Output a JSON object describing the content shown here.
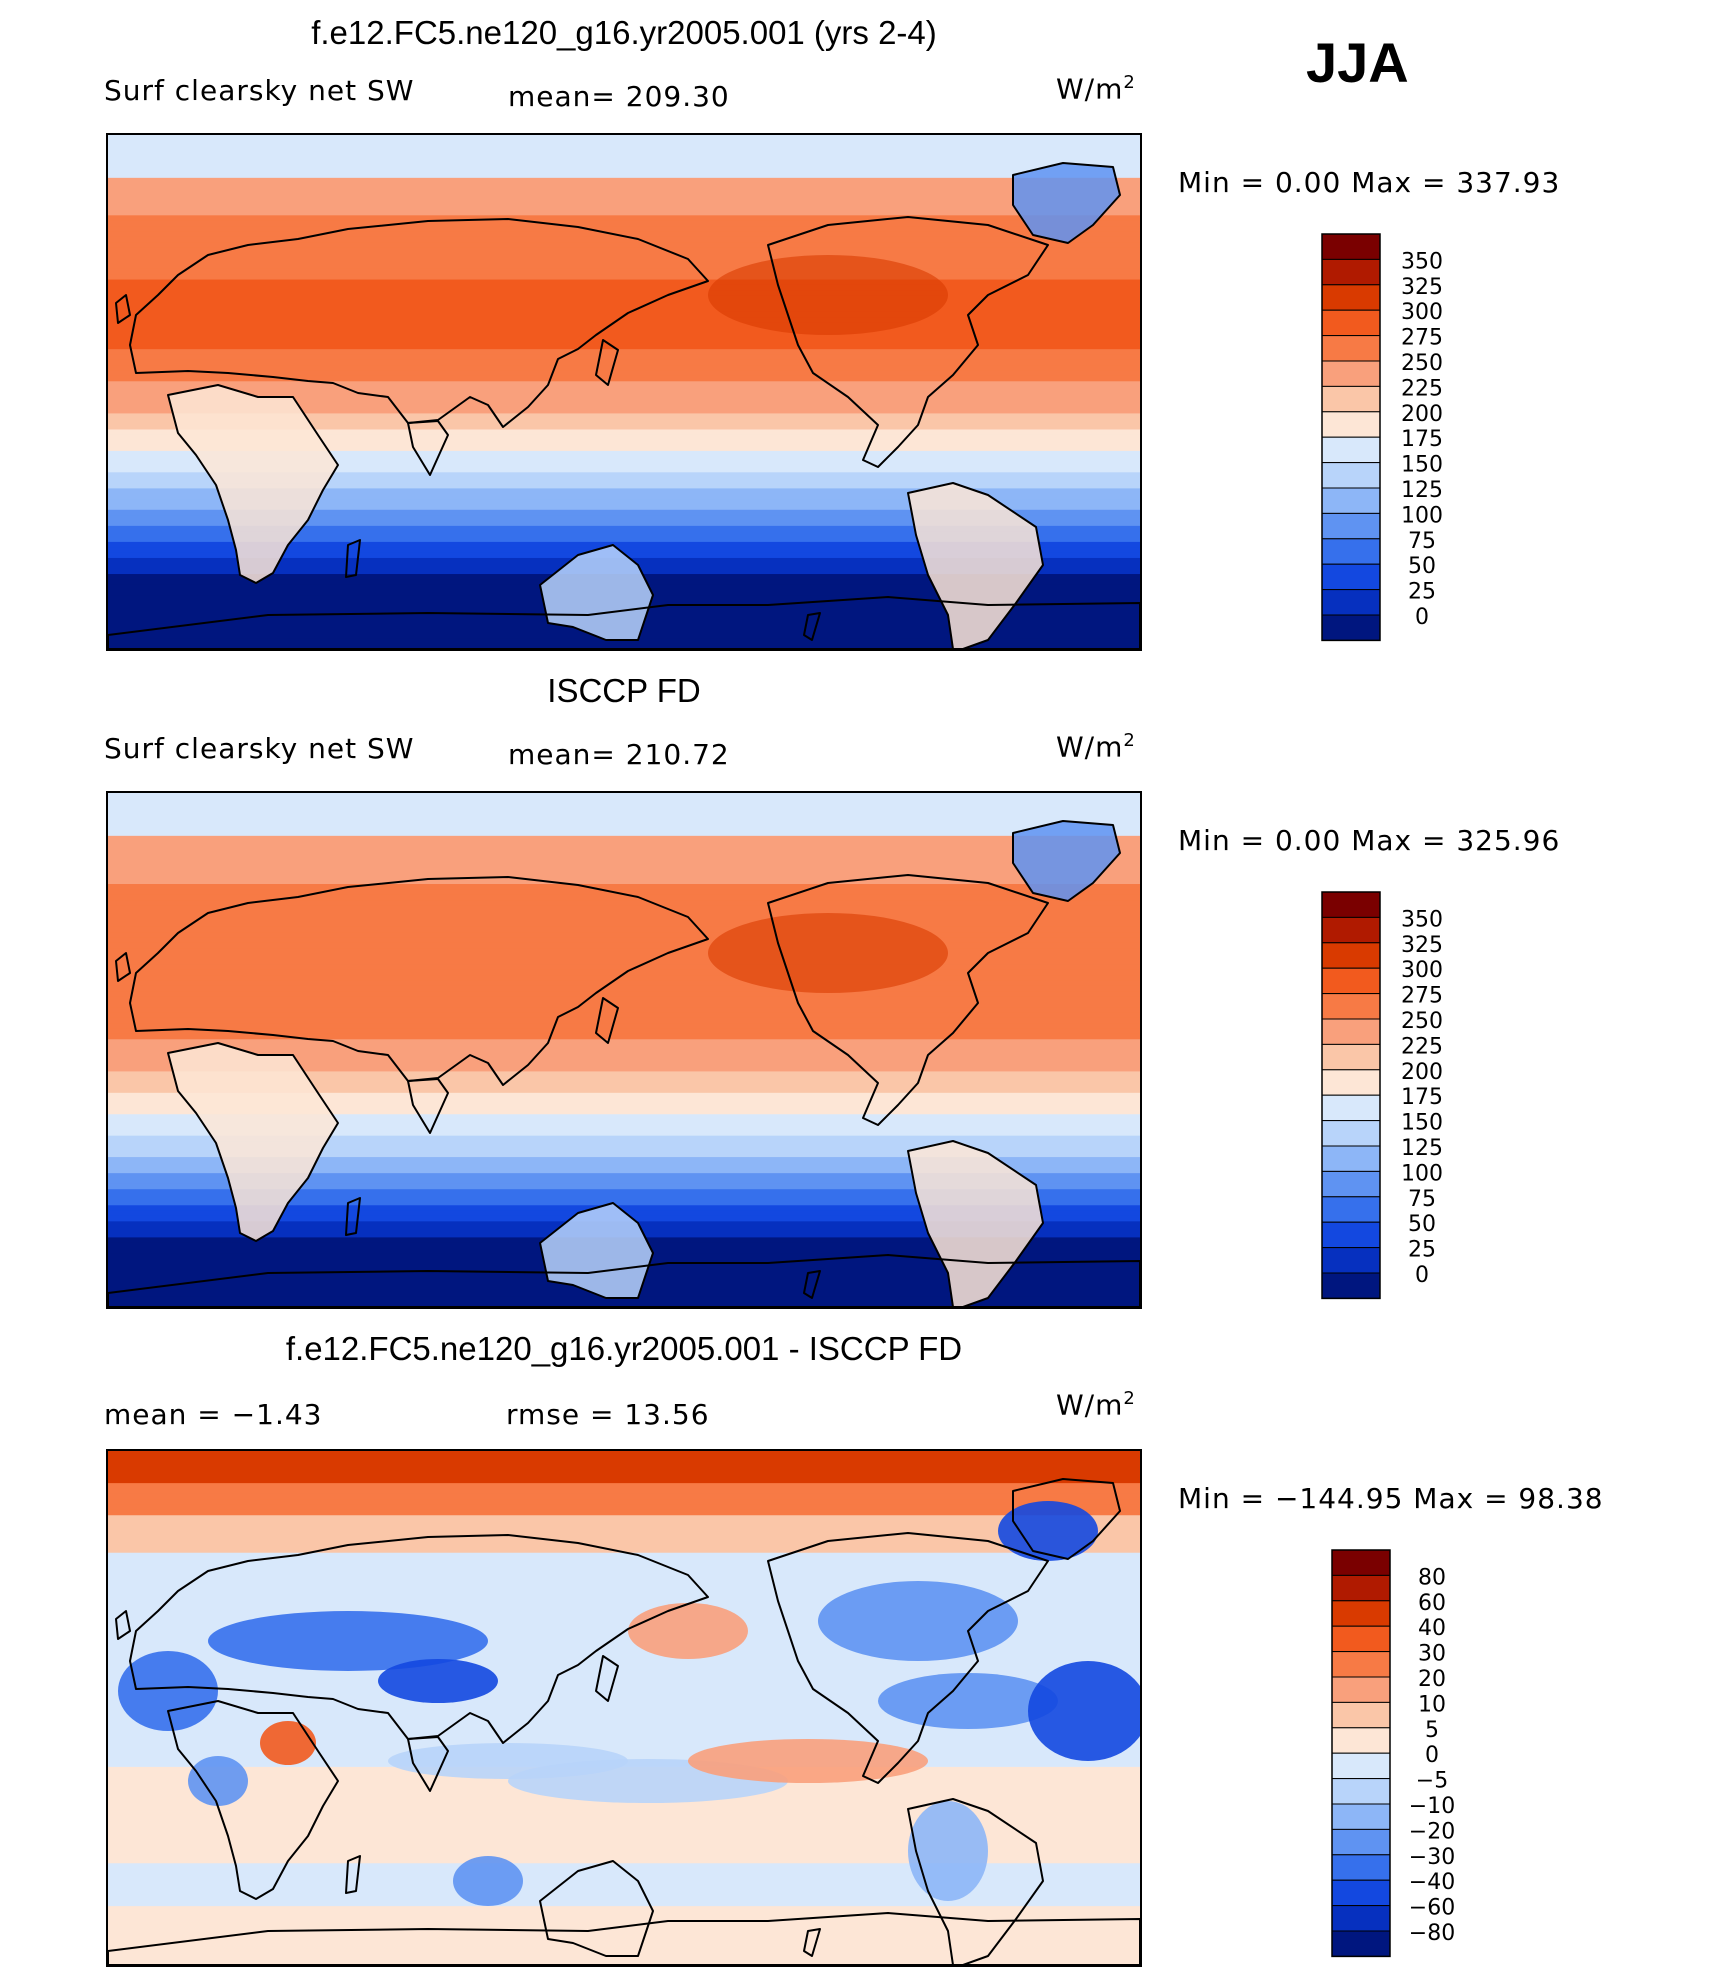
{
  "season": "JJA",
  "panels": [
    {
      "title": "f.e12.FC5.ne120_g16.yr2005.001 (yrs 2-4)",
      "left_label": "Surf clearsky net SW",
      "mid_label": "mean=  209.30",
      "units": "W/m",
      "units_sup": "2",
      "minmax": "Min =    0.00 Max =  337.93",
      "colorbar_labels": [
        "350",
        "325",
        "300",
        "275",
        "250",
        "225",
        "200",
        "175",
        "150",
        "125",
        "100",
        "75",
        "50",
        "25",
        "0"
      ]
    },
    {
      "title": "ISCCP FD",
      "left_label": "Surf clearsky net SW",
      "mid_label": "mean=  210.72",
      "units": "W/m",
      "units_sup": "2",
      "minmax": "Min =    0.00 Max =  325.96",
      "colorbar_labels": [
        "350",
        "325",
        "300",
        "275",
        "250",
        "225",
        "200",
        "175",
        "150",
        "125",
        "100",
        "75",
        "50",
        "25",
        "0"
      ]
    },
    {
      "title": "f.e12.FC5.ne120_g16.yr2005.001 - ISCCP FD",
      "left_label": "mean =   −1.43",
      "mid_label": "rmse =   13.56",
      "units": "W/m",
      "units_sup": "2",
      "minmax": "Min = −144.95 Max =   98.38",
      "colorbar_labels": [
        "80",
        "60",
        "40",
        "30",
        "20",
        "10",
        "5",
        "0",
        "−5",
        "−10",
        "−20",
        "−30",
        "−40",
        "−60",
        "−80"
      ]
    }
  ],
  "colors": {
    "abs_scale": [
      "#7a0000",
      "#b01a00",
      "#d93a00",
      "#f25a1e",
      "#f77a45",
      "#f9a07c",
      "#fac6a8",
      "#fde6d6",
      "#d8e8fb",
      "#b8d4fa",
      "#8db6f7",
      "#5f93f2",
      "#3670ec",
      "#1348e0",
      "#0630bf",
      "#00167f"
    ],
    "diff_scale": [
      "#7a0000",
      "#b01a00",
      "#d93a00",
      "#f25a1e",
      "#f77a45",
      "#f9a07c",
      "#fac6a8",
      "#fde6d6",
      "#d8e8fb",
      "#b8d4fa",
      "#8db6f7",
      "#5f93f2",
      "#3670ec",
      "#1348e0",
      "#0630bf",
      "#00167f"
    ],
    "coast": "#000000"
  },
  "chart_data": [
    {
      "type": "heatmap",
      "title": "f.e12.FC5.ne120_g16.yr2005.001 (yrs 2-4)",
      "variable": "Surf clearsky net SW",
      "units": "W/m2",
      "season": "JJA",
      "mean": 209.3,
      "min": 0.0,
      "max": 337.93,
      "levels": [
        0,
        25,
        50,
        75,
        100,
        125,
        150,
        175,
        200,
        225,
        250,
        275,
        300,
        325,
        350
      ],
      "zonal_profile_approx": {
        "lat": [
          90,
          70,
          50,
          30,
          10,
          -10,
          -30,
          -50,
          -70,
          -90
        ],
        "value": [
          190,
          250,
          285,
          300,
          280,
          240,
          175,
          90,
          15,
          0
        ]
      }
    },
    {
      "type": "heatmap",
      "title": "ISCCP FD",
      "variable": "Surf clearsky net SW",
      "units": "W/m2",
      "season": "JJA",
      "mean": 210.72,
      "min": 0.0,
      "max": 325.96,
      "levels": [
        0,
        25,
        50,
        75,
        100,
        125,
        150,
        175,
        200,
        225,
        250,
        275,
        300,
        325,
        350
      ],
      "zonal_profile_approx": {
        "lat": [
          90,
          70,
          50,
          30,
          10,
          -10,
          -30,
          -50,
          -70,
          -90
        ],
        "value": [
          185,
          245,
          285,
          300,
          285,
          245,
          180,
          95,
          20,
          0
        ]
      }
    },
    {
      "type": "heatmap",
      "title": "f.e12.FC5.ne120_g16.yr2005.001 - ISCCP FD",
      "variable": "Surf clearsky net SW difference",
      "units": "W/m2",
      "season": "JJA",
      "mean": -1.43,
      "rmse": 13.56,
      "min": -144.95,
      "max": 98.38,
      "levels": [
        -80,
        -60,
        -40,
        -30,
        -20,
        -10,
        -5,
        0,
        5,
        10,
        20,
        30,
        40,
        60,
        80
      ]
    }
  ]
}
